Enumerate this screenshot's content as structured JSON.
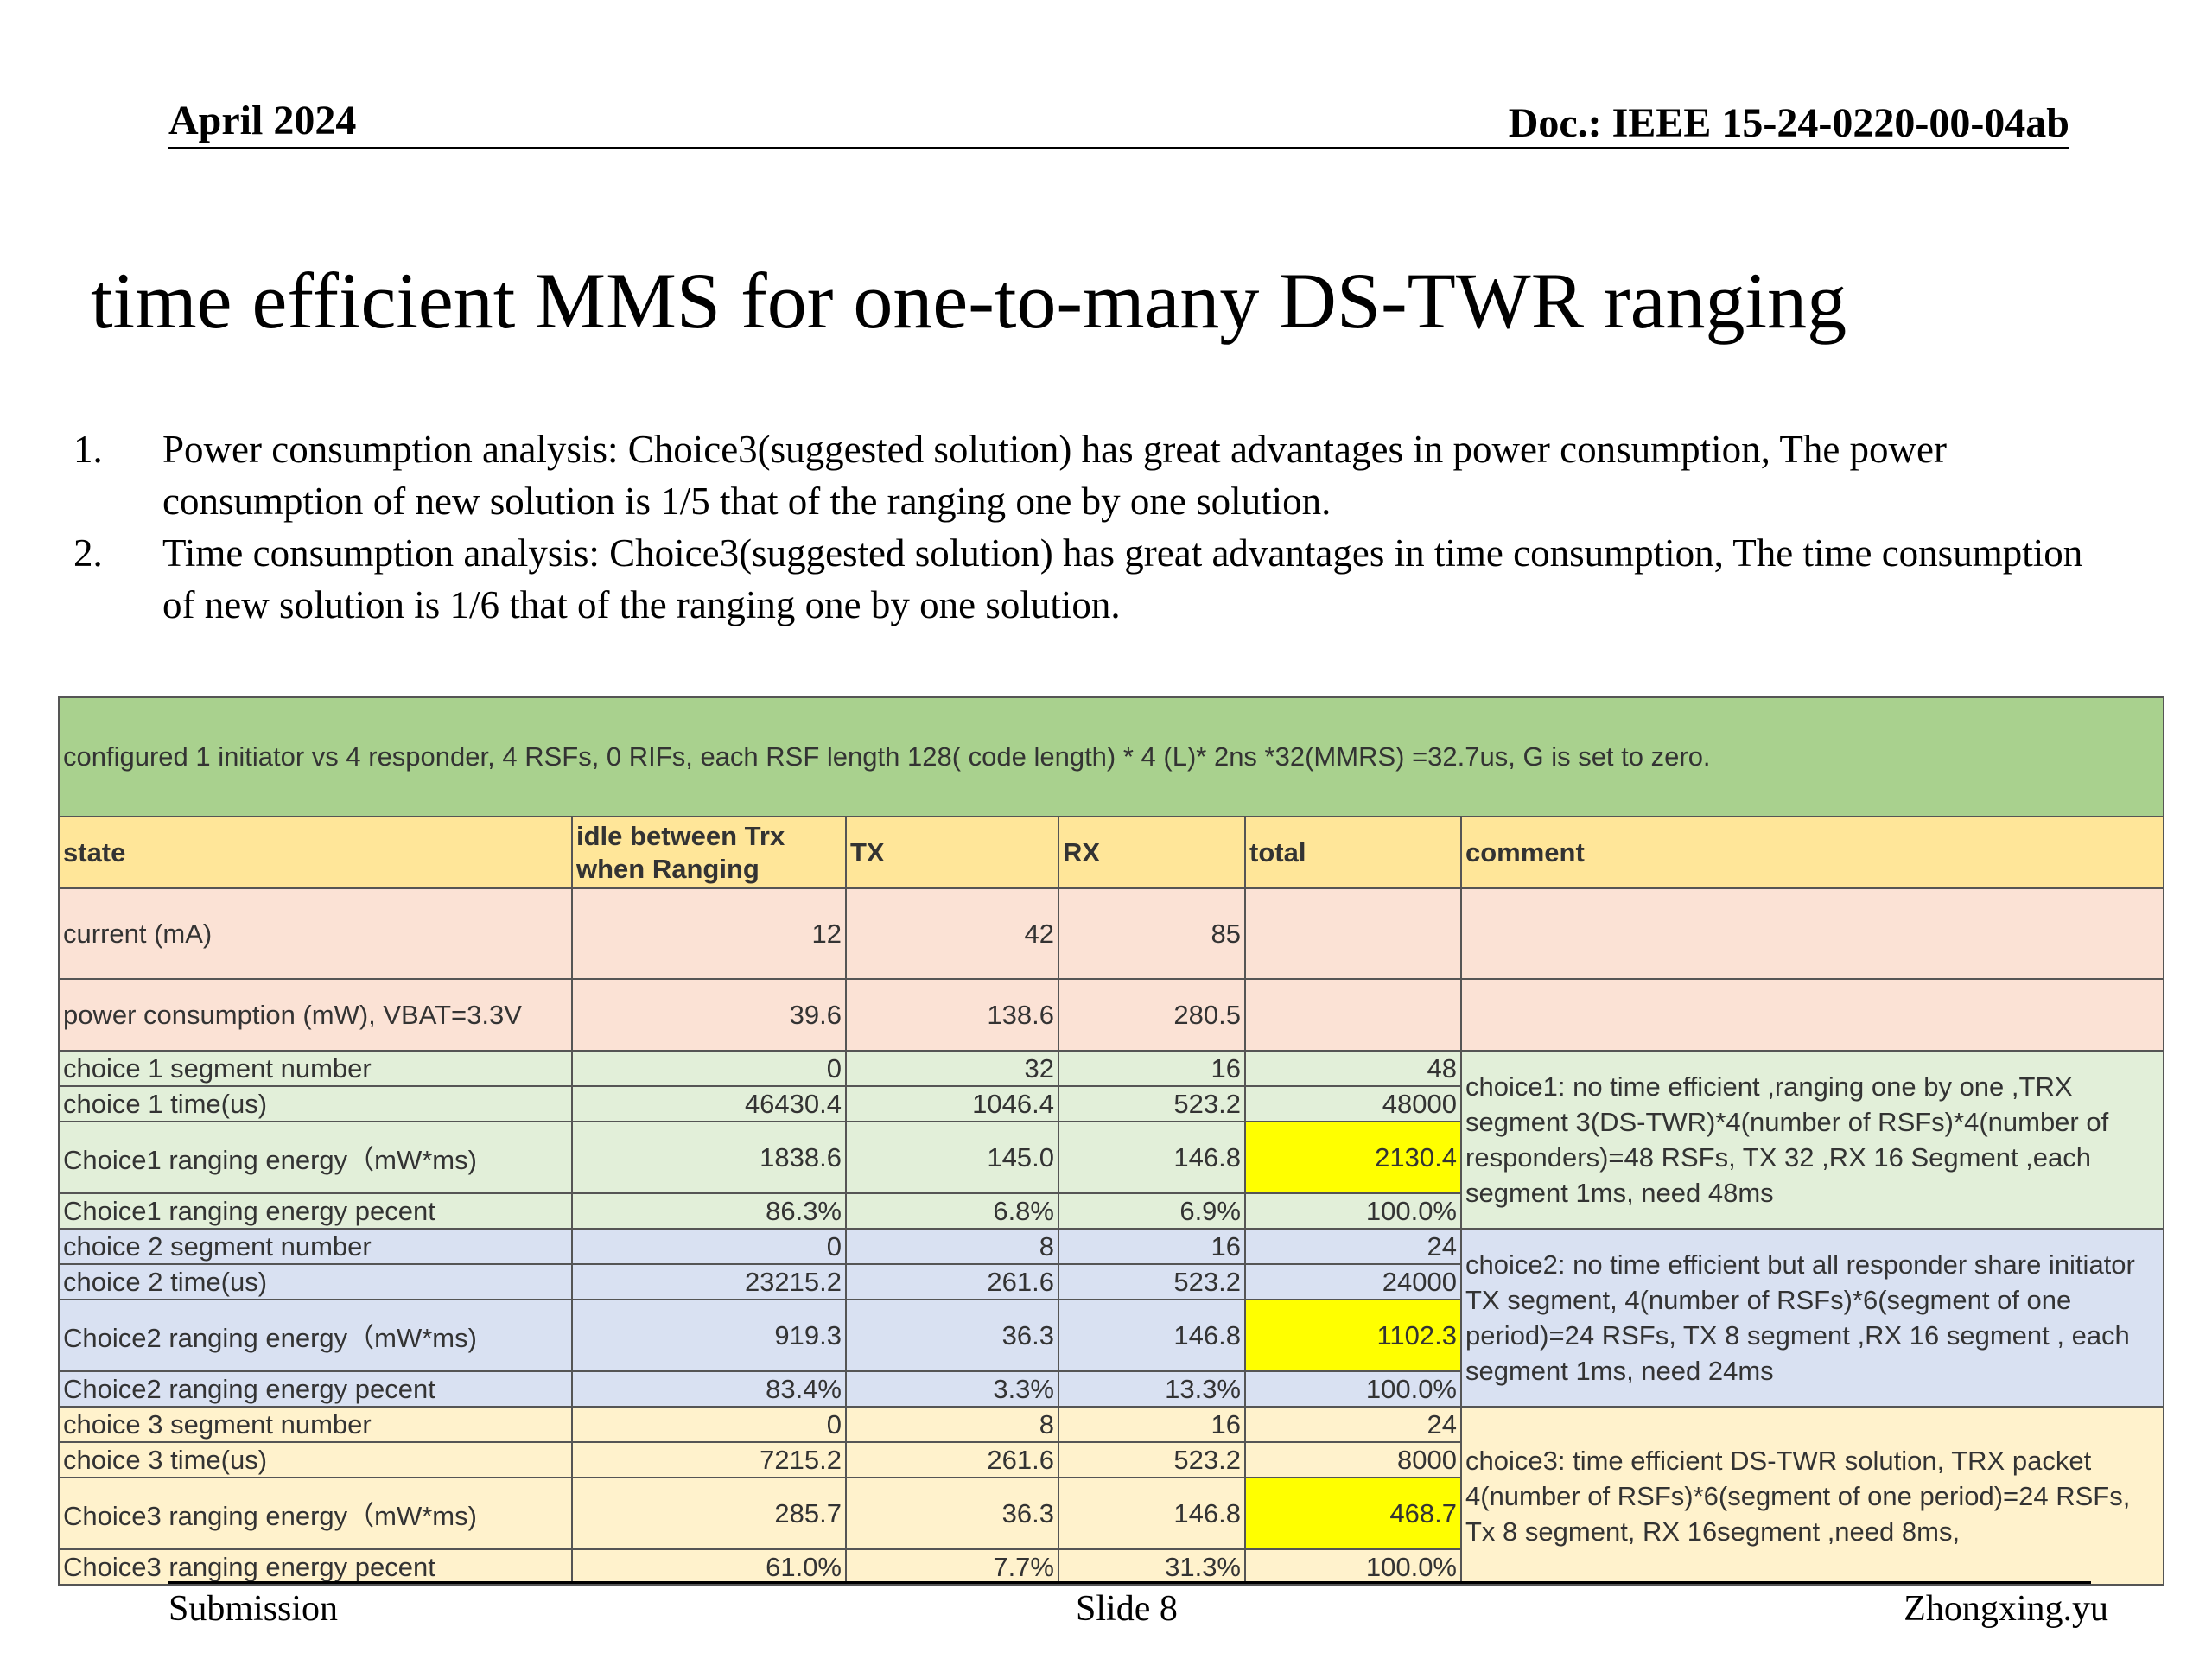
{
  "header": {
    "date": "April 2024",
    "doc_id": "Doc.: IEEE 15-24-0220-00-04ab"
  },
  "title": "time efficient  MMS for one-to-many DS-TWR ranging",
  "bullets": [
    {
      "num": "1.",
      "text": "Power consumption analysis: Choice3(suggested solution)  has great advantages in power consumption, The power consumption of new solution is 1/5 that of the ranging one by one solution."
    },
    {
      "num": "2.",
      "text": "Time consumption analysis: Choice3(suggested solution)  has great advantages in time consumption, The time consumption of new solution is 1/6 that of the ranging one by one solution."
    }
  ],
  "table": {
    "config_note": "configured 1 initiator vs 4 responder,  4 RSFs, 0 RIFs, each RSF length 128( code length) * 4 (L)* 2ns *32(MMRS) =32.7us, G is set to zero.",
    "headers": [
      "state",
      "idle between Trx when Ranging",
      "TX",
      "RX",
      "total",
      "comment"
    ],
    "current": {
      "label": "current (mA)",
      "idle": "12",
      "tx": "42",
      "rx": "85"
    },
    "power": {
      "label": "power consumption (mW),  VBAT=3.3V",
      "idle": "39.6",
      "tx": "138.6",
      "rx": "280.5"
    },
    "choices": [
      {
        "rows": [
          {
            "label": "choice 1 segment number",
            "idle": "0",
            "tx": "32",
            "rx": "16",
            "total": "48"
          },
          {
            "label": "choice 1 time(us)",
            "idle": "46430.4",
            "tx": "1046.4",
            "rx": "523.2",
            "total": "48000"
          },
          {
            "label": "Choice1 ranging energy（mW*ms)",
            "idle": "1838.6",
            "tx": "145.0",
            "rx": "146.8",
            "total": "2130.4"
          },
          {
            "label": "Choice1 ranging energy pecent",
            "idle": "86.3%",
            "tx": "6.8%",
            "rx": "6.9%",
            "total": "100.0%"
          }
        ],
        "comment": "choice1: no time efficient ,ranging one by one ,TRX segment 3(DS-TWR)*4(number of RSFs)*4(number of responders)=48 RSFs, TX 32 ,RX 16 Segment ,each segment 1ms, need 48ms"
      },
      {
        "rows": [
          {
            "label": "choice 2 segment number",
            "idle": "0",
            "tx": "8",
            "rx": "16",
            "total": "24"
          },
          {
            "label": "choice 2 time(us)",
            "idle": "23215.2",
            "tx": "261.6",
            "rx": "523.2",
            "total": "24000"
          },
          {
            "label": "Choice2  ranging energy（mW*ms)",
            "idle": "919.3",
            "tx": "36.3",
            "rx": "146.8",
            "total": "1102.3"
          },
          {
            "label": "Choice2  ranging energy pecent",
            "idle": "83.4%",
            "tx": "3.3%",
            "rx": "13.3%",
            "total": "100.0%"
          }
        ],
        "comment": "choice2: no time efficient but all responder share initiator TX segment, 4(number of RSFs)*6(segment of one period)=24 RSFs, TX 8 segment ,RX 16 segment , each segment 1ms, need 24ms"
      },
      {
        "rows": [
          {
            "label": "choice 3 segment number",
            "idle": "0",
            "tx": "8",
            "rx": "16",
            "total": "24"
          },
          {
            "label": "choice 3 time(us)",
            "idle": "7215.2",
            "tx": "261.6",
            "rx": "523.2",
            "total": "8000"
          },
          {
            "label": "Choice3  ranging energy（mW*ms)",
            "idle": "285.7",
            "tx": "36.3",
            "rx": "146.8",
            "total": "468.7"
          },
          {
            "label": "Choice3  ranging energy pecent",
            "idle": "61.0%",
            "tx": "7.7%",
            "rx": "31.3%",
            "total": "100.0%"
          }
        ],
        "comment": "choice3: time efficient DS-TWR solution,   TRX packet  4(number of RSFs)*6(segment of one period)=24 RSFs,  Tx 8 segment, RX 16segment ,need 8ms,"
      }
    ]
  },
  "footer": {
    "left": "Submission",
    "center": "Slide 8",
    "right": "Zhongxing.yu"
  },
  "colors": {
    "config_bg": "#a9d18e",
    "header_bg": "#ffe699",
    "highlight": "#ffff00"
  }
}
